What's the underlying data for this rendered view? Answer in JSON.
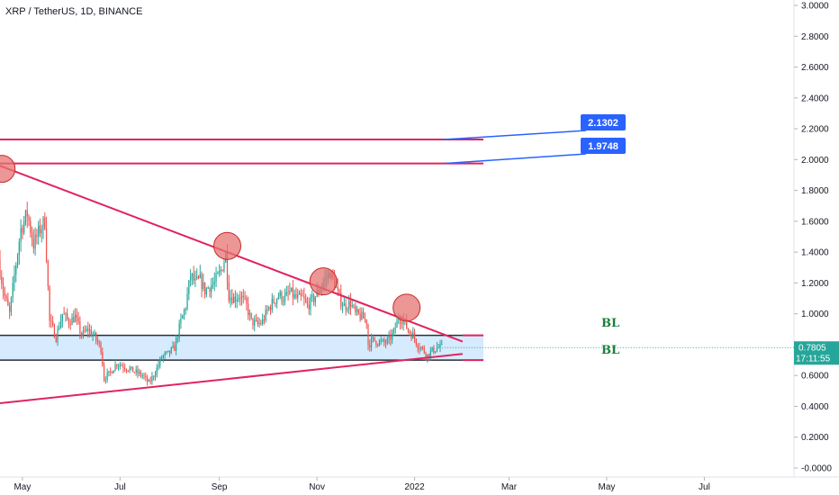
{
  "chart_data": {
    "type": "candlestick",
    "title": "XRP / TetherUS, 1D, BINANCE",
    "y_ticks": [
      {
        "value": 3.0,
        "label": "3.0000"
      },
      {
        "value": 2.8,
        "label": "2.8000"
      },
      {
        "value": 2.6,
        "label": "2.6000"
      },
      {
        "value": 2.4,
        "label": "2.4000"
      },
      {
        "value": 2.2,
        "label": "2.2000"
      },
      {
        "value": 2.0,
        "label": "2.0000"
      },
      {
        "value": 1.8,
        "label": "1.8000"
      },
      {
        "value": 1.6,
        "label": "1.6000"
      },
      {
        "value": 1.4,
        "label": "1.4000"
      },
      {
        "value": 1.2,
        "label": "1.2000"
      },
      {
        "value": 1.0,
        "label": "1.0000"
      },
      {
        "value": 0.8,
        "label": "0.8000"
      },
      {
        "value": 0.6,
        "label": "0.6000"
      },
      {
        "value": 0.4,
        "label": "0.4000"
      },
      {
        "value": 0.2,
        "label": "0.2000"
      },
      {
        "value": 0.0,
        "label": "-0.0000"
      }
    ],
    "x_ticks": [
      {
        "date": "2021-05-01",
        "label": "May"
      },
      {
        "date": "2021-07-01",
        "label": "Jul"
      },
      {
        "date": "2021-09-01",
        "label": "Sep"
      },
      {
        "date": "2021-11-01",
        "label": "Nov"
      },
      {
        "date": "2022-01-01",
        "label": "2022"
      },
      {
        "date": "2022-03-01",
        "label": "Mar"
      },
      {
        "date": "2022-05-01",
        "label": "May"
      },
      {
        "date": "2022-07-01",
        "label": "Jul"
      }
    ],
    "ylim": [
      0,
      3.0
    ],
    "xlim": [
      "2021-04-17",
      "2022-08-26"
    ],
    "grid": false,
    "colors": {
      "up": "#26a69a",
      "down": "#ef5350",
      "line": "#e0245e",
      "zone": "#bbdefb",
      "callout": "#2962ff"
    },
    "current_price": {
      "label": "0.7805",
      "countdown": "17:11:55",
      "value": 0.7805
    },
    "horizontal_lines": [
      {
        "value": 2.1302,
        "label": "2.1302",
        "start": "2021-04-17",
        "end": "2022-02-13"
      },
      {
        "value": 1.9748,
        "label": "1.9748",
        "start": "2021-04-17",
        "end": "2022-02-13"
      }
    ],
    "support_zone": {
      "top": 0.86,
      "bottom": 0.7,
      "start": "2021-04-17",
      "end": "2022-02-13"
    },
    "zone_labels": [
      {
        "text": "BL",
        "value": 0.945
      },
      {
        "text": "BL",
        "value": 0.77
      }
    ],
    "trendlines": [
      {
        "x1": "2021-04-17",
        "y1": 1.96,
        "x2": "2022-01-31",
        "y2": 0.82
      },
      {
        "x1": "2021-04-17",
        "y1": 0.42,
        "x2": "2022-01-31",
        "y2": 0.74
      }
    ],
    "touch_circles": [
      {
        "date": "2021-04-18",
        "value": 1.94
      },
      {
        "date": "2021-09-06",
        "value": 1.44
      },
      {
        "date": "2021-11-05",
        "value": 1.21
      },
      {
        "date": "2021-12-27",
        "value": 1.04
      }
    ],
    "price_path": [
      [
        "2021-04-17",
        1.35
      ],
      [
        "2021-04-20",
        1.15
      ],
      [
        "2021-04-24",
        1.0
      ],
      [
        "2021-04-27",
        1.25
      ],
      [
        "2021-05-01",
        1.55
      ],
      [
        "2021-05-05",
        1.65
      ],
      [
        "2021-05-09",
        1.45
      ],
      [
        "2021-05-13",
        1.55
      ],
      [
        "2021-05-16",
        1.6
      ],
      [
        "2021-05-19",
        0.95
      ],
      [
        "2021-05-23",
        0.85
      ],
      [
        "2021-05-27",
        1.0
      ],
      [
        "2021-05-31",
        0.95
      ],
      [
        "2021-06-04",
        0.98
      ],
      [
        "2021-06-08",
        0.86
      ],
      [
        "2021-06-12",
        0.9
      ],
      [
        "2021-06-16",
        0.85
      ],
      [
        "2021-06-20",
        0.78
      ],
      [
        "2021-06-22",
        0.58
      ],
      [
        "2021-06-26",
        0.62
      ],
      [
        "2021-06-30",
        0.68
      ],
      [
        "2021-07-04",
        0.66
      ],
      [
        "2021-07-08",
        0.64
      ],
      [
        "2021-07-12",
        0.62
      ],
      [
        "2021-07-16",
        0.6
      ],
      [
        "2021-07-20",
        0.55
      ],
      [
        "2021-07-24",
        0.62
      ],
      [
        "2021-07-28",
        0.72
      ],
      [
        "2021-08-01",
        0.74
      ],
      [
        "2021-08-05",
        0.78
      ],
      [
        "2021-08-09",
        0.95
      ],
      [
        "2021-08-12",
        1.05
      ],
      [
        "2021-08-15",
        1.25
      ],
      [
        "2021-08-18",
        1.2
      ],
      [
        "2021-08-21",
        1.22
      ],
      [
        "2021-08-24",
        1.15
      ],
      [
        "2021-08-27",
        1.18
      ],
      [
        "2021-08-30",
        1.2
      ],
      [
        "2021-09-03",
        1.28
      ],
      [
        "2021-09-06",
        1.38
      ],
      [
        "2021-09-08",
        1.12
      ],
      [
        "2021-09-11",
        1.1
      ],
      [
        "2021-09-15",
        1.12
      ],
      [
        "2021-09-19",
        1.05
      ],
      [
        "2021-09-22",
        0.95
      ],
      [
        "2021-09-26",
        0.93
      ],
      [
        "2021-09-29",
        0.95
      ],
      [
        "2021-10-02",
        1.02
      ],
      [
        "2021-10-05",
        1.07
      ],
      [
        "2021-10-09",
        1.12
      ],
      [
        "2021-10-13",
        1.1
      ],
      [
        "2021-10-16",
        1.14
      ],
      [
        "2021-10-20",
        1.1
      ],
      [
        "2021-10-24",
        1.1
      ],
      [
        "2021-10-27",
        1.05
      ],
      [
        "2021-10-31",
        1.1
      ],
      [
        "2021-11-03",
        1.15
      ],
      [
        "2021-11-07",
        1.22
      ],
      [
        "2021-11-10",
        1.27
      ],
      [
        "2021-11-13",
        1.2
      ],
      [
        "2021-11-16",
        1.1
      ],
      [
        "2021-11-19",
        1.05
      ],
      [
        "2021-11-23",
        1.07
      ],
      [
        "2021-11-26",
        1.0
      ],
      [
        "2021-11-30",
        0.98
      ],
      [
        "2021-12-03",
        0.95
      ],
      [
        "2021-12-04",
        0.8
      ],
      [
        "2021-12-07",
        0.83
      ],
      [
        "2021-12-10",
        0.82
      ],
      [
        "2021-12-14",
        0.81
      ],
      [
        "2021-12-17",
        0.83
      ],
      [
        "2021-12-20",
        0.88
      ],
      [
        "2021-12-23",
        0.98
      ],
      [
        "2021-12-26",
        0.96
      ],
      [
        "2021-12-29",
        0.89
      ],
      [
        "2022-01-01",
        0.86
      ],
      [
        "2022-01-04",
        0.8
      ],
      [
        "2022-01-07",
        0.77
      ],
      [
        "2022-01-10",
        0.73
      ],
      [
        "2022-01-13",
        0.76
      ],
      [
        "2022-01-16",
        0.78
      ],
      [
        "2022-01-18",
        0.78
      ]
    ]
  }
}
